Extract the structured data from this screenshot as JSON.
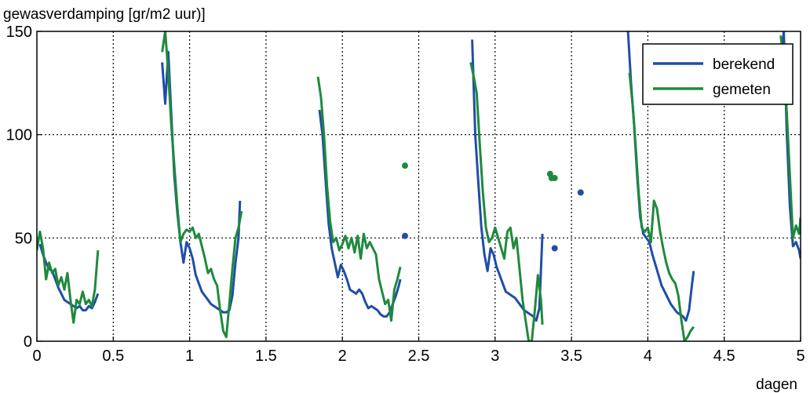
{
  "chart_data": {
    "type": "line",
    "title": "",
    "ylabel": "gewasverdamping [gr/m2 uur)]",
    "xlabel": "dagen",
    "xlim": [
      0,
      5
    ],
    "ylim": [
      0,
      150
    ],
    "xticks": [
      0,
      0.5,
      1,
      1.5,
      2,
      2.5,
      3,
      3.5,
      4,
      4.5,
      5
    ],
    "xtick_labels": [
      "0",
      "0.5",
      "1",
      "1.5",
      "2",
      "2.5",
      "3",
      "3.5",
      "4",
      "4.5",
      "5"
    ],
    "yticks": [
      0,
      50,
      100,
      150
    ],
    "ytick_labels": [
      "0",
      "50",
      "100",
      "150"
    ],
    "grid": true,
    "legend_position": "top-right",
    "legend": [
      "berekend",
      "gemeten"
    ],
    "series": [
      {
        "name": "berekend",
        "color": "#1f4ea8",
        "segments": [
          [
            [
              0.02,
              47
            ],
            [
              0.04,
              42
            ],
            [
              0.06,
              38
            ],
            [
              0.08,
              35
            ],
            [
              0.1,
              34
            ],
            [
              0.12,
              30
            ],
            [
              0.14,
              26
            ],
            [
              0.16,
              23
            ],
            [
              0.18,
              20
            ],
            [
              0.2,
              19
            ],
            [
              0.22,
              18
            ],
            [
              0.24,
              17
            ],
            [
              0.26,
              16
            ],
            [
              0.28,
              17
            ],
            [
              0.3,
              15
            ],
            [
              0.32,
              15
            ],
            [
              0.34,
              17
            ],
            [
              0.36,
              16
            ],
            [
              0.38,
              19
            ],
            [
              0.4,
              23
            ]
          ],
          [
            [
              0.82,
              135
            ],
            [
              0.84,
              115
            ],
            [
              0.86,
              140
            ],
            [
              0.88,
              110
            ],
            [
              0.9,
              80
            ],
            [
              0.92,
              62
            ],
            [
              0.94,
              48
            ],
            [
              0.96,
              38
            ],
            [
              0.98,
              48
            ],
            [
              1.0,
              45
            ],
            [
              1.02,
              40
            ],
            [
              1.04,
              32
            ],
            [
              1.06,
              28
            ],
            [
              1.08,
              24
            ],
            [
              1.1,
              22
            ],
            [
              1.12,
              20
            ],
            [
              1.14,
              18
            ],
            [
              1.16,
              17
            ],
            [
              1.18,
              16
            ],
            [
              1.2,
              15
            ],
            [
              1.22,
              14
            ],
            [
              1.24,
              14
            ],
            [
              1.26,
              15
            ],
            [
              1.28,
              22
            ],
            [
              1.3,
              38
            ],
            [
              1.32,
              50
            ],
            [
              1.33,
              68
            ]
          ],
          [
            [
              1.85,
              112
            ],
            [
              1.87,
              100
            ],
            [
              1.89,
              78
            ],
            [
              1.91,
              57
            ],
            [
              1.93,
              45
            ],
            [
              1.95,
              38
            ],
            [
              1.97,
              31
            ],
            [
              1.99,
              37
            ],
            [
              2.01,
              34
            ],
            [
              2.03,
              30
            ],
            [
              2.05,
              25
            ],
            [
              2.07,
              24
            ],
            [
              2.09,
              23
            ],
            [
              2.11,
              25
            ],
            [
              2.13,
              23
            ],
            [
              2.15,
              19
            ],
            [
              2.17,
              16
            ],
            [
              2.19,
              17
            ],
            [
              2.21,
              16
            ],
            [
              2.23,
              15
            ],
            [
              2.25,
              13
            ],
            [
              2.27,
              12
            ],
            [
              2.29,
              12
            ],
            [
              2.31,
              14
            ],
            [
              2.33,
              18
            ],
            [
              2.35,
              22
            ],
            [
              2.37,
              27
            ],
            [
              2.38,
              30
            ]
          ],
          [
            [
              2.85,
              146
            ],
            [
              2.87,
              100
            ],
            [
              2.89,
              77
            ],
            [
              2.91,
              55
            ],
            [
              2.93,
              42
            ],
            [
              2.95,
              34
            ],
            [
              2.97,
              45
            ],
            [
              2.99,
              42
            ],
            [
              3.01,
              36
            ],
            [
              3.03,
              32
            ],
            [
              3.05,
              28
            ],
            [
              3.07,
              24
            ],
            [
              3.09,
              23
            ],
            [
              3.11,
              22
            ],
            [
              3.13,
              21
            ],
            [
              3.15,
              19
            ],
            [
              3.17,
              17
            ],
            [
              3.19,
              15
            ],
            [
              3.21,
              14
            ],
            [
              3.23,
              13
            ],
            [
              3.25,
              12
            ],
            [
              3.27,
              10
            ],
            [
              3.29,
              16
            ],
            [
              3.31,
              52
            ]
          ],
          [
            [
              3.87,
              150
            ],
            [
              3.89,
              125
            ],
            [
              3.91,
              105
            ],
            [
              3.93,
              80
            ],
            [
              3.95,
              60
            ],
            [
              3.97,
              52
            ],
            [
              3.99,
              50
            ],
            [
              4.01,
              48
            ],
            [
              4.03,
              42
            ],
            [
              4.05,
              37
            ],
            [
              4.07,
              32
            ],
            [
              4.09,
              27
            ],
            [
              4.11,
              24
            ],
            [
              4.13,
              21
            ],
            [
              4.15,
              18
            ],
            [
              4.17,
              16
            ],
            [
              4.19,
              14
            ],
            [
              4.21,
              13
            ],
            [
              4.23,
              12
            ],
            [
              4.25,
              10
            ],
            [
              4.27,
              15
            ],
            [
              4.29,
              28
            ],
            [
              4.3,
              34
            ]
          ],
          [
            [
              4.86,
              122
            ],
            [
              4.88,
              140
            ],
            [
              4.89,
              150
            ],
            [
              4.91,
              100
            ],
            [
              4.93,
              65
            ],
            [
              4.95,
              46
            ],
            [
              4.97,
              48
            ],
            [
              4.99,
              44
            ],
            [
              5.0,
              40
            ]
          ]
        ],
        "points": [
          [
            2.41,
            51
          ],
          [
            3.39,
            45
          ],
          [
            3.56,
            72
          ]
        ]
      },
      {
        "name": "gemeten",
        "color": "#1f8a3c",
        "segments": [
          [
            [
              0.0,
              44
            ],
            [
              0.02,
              53
            ],
            [
              0.04,
              45
            ],
            [
              0.06,
              30
            ],
            [
              0.08,
              38
            ],
            [
              0.1,
              33
            ],
            [
              0.12,
              35
            ],
            [
              0.14,
              27
            ],
            [
              0.16,
              31
            ],
            [
              0.18,
              25
            ],
            [
              0.2,
              33
            ],
            [
              0.22,
              20
            ],
            [
              0.24,
              9
            ],
            [
              0.26,
              20
            ],
            [
              0.28,
              18
            ],
            [
              0.3,
              24
            ],
            [
              0.32,
              18
            ],
            [
              0.34,
              20
            ],
            [
              0.36,
              17
            ],
            [
              0.38,
              25
            ],
            [
              0.4,
              44
            ]
          ],
          [
            [
              0.82,
              140
            ],
            [
              0.84,
              150
            ],
            [
              0.86,
              130
            ],
            [
              0.88,
              105
            ],
            [
              0.9,
              85
            ],
            [
              0.92,
              65
            ],
            [
              0.94,
              48
            ],
            [
              0.96,
              52
            ],
            [
              0.98,
              54
            ],
            [
              1.0,
              53
            ],
            [
              1.02,
              55
            ],
            [
              1.04,
              50
            ],
            [
              1.06,
              52
            ],
            [
              1.08,
              46
            ],
            [
              1.1,
              40
            ],
            [
              1.12,
              33
            ],
            [
              1.14,
              35
            ],
            [
              1.16,
              30
            ],
            [
              1.18,
              27
            ],
            [
              1.2,
              15
            ],
            [
              1.22,
              5
            ],
            [
              1.24,
              2
            ],
            [
              1.26,
              18
            ],
            [
              1.28,
              35
            ],
            [
              1.3,
              50
            ],
            [
              1.32,
              55
            ],
            [
              1.34,
              63
            ]
          ],
          [
            [
              1.84,
              128
            ],
            [
              1.86,
              118
            ],
            [
              1.88,
              100
            ],
            [
              1.9,
              75
            ],
            [
              1.92,
              58
            ],
            [
              1.94,
              48
            ],
            [
              1.96,
              50
            ],
            [
              1.98,
              44
            ],
            [
              2.0,
              47
            ],
            [
              2.02,
              51
            ],
            [
              2.04,
              45
            ],
            [
              2.06,
              50
            ],
            [
              2.08,
              43
            ],
            [
              2.1,
              51
            ],
            [
              2.12,
              40
            ],
            [
              2.14,
              52
            ],
            [
              2.16,
              45
            ],
            [
              2.18,
              48
            ],
            [
              2.2,
              45
            ],
            [
              2.22,
              42
            ],
            [
              2.24,
              30
            ],
            [
              2.26,
              24
            ],
            [
              2.28,
              18
            ],
            [
              2.3,
              20
            ],
            [
              2.32,
              10
            ],
            [
              2.34,
              25
            ],
            [
              2.36,
              30
            ],
            [
              2.38,
              36
            ]
          ],
          [
            [
              2.84,
              135
            ],
            [
              2.86,
              128
            ],
            [
              2.88,
              120
            ],
            [
              2.9,
              95
            ],
            [
              2.92,
              72
            ],
            [
              2.94,
              55
            ],
            [
              2.96,
              48
            ],
            [
              2.98,
              50
            ],
            [
              3.0,
              55
            ],
            [
              3.02,
              50
            ],
            [
              3.04,
              45
            ],
            [
              3.06,
              40
            ],
            [
              3.08,
              53
            ],
            [
              3.1,
              55
            ],
            [
              3.12,
              45
            ],
            [
              3.14,
              50
            ],
            [
              3.16,
              35
            ],
            [
              3.18,
              20
            ],
            [
              3.2,
              10
            ],
            [
              3.22,
              0
            ],
            [
              3.24,
              0
            ],
            [
              3.26,
              15
            ],
            [
              3.28,
              32
            ],
            [
              3.3,
              20
            ],
            [
              3.31,
              8
            ]
          ],
          [
            [
              3.88,
              130
            ],
            [
              3.9,
              115
            ],
            [
              3.92,
              95
            ],
            [
              3.94,
              72
            ],
            [
              3.96,
              55
            ],
            [
              3.98,
              53
            ],
            [
              4.0,
              55
            ],
            [
              4.02,
              48
            ],
            [
              4.04,
              68
            ],
            [
              4.06,
              64
            ],
            [
              4.08,
              53
            ],
            [
              4.1,
              45
            ],
            [
              4.12,
              38
            ],
            [
              4.14,
              33
            ],
            [
              4.16,
              30
            ],
            [
              4.18,
              28
            ],
            [
              4.2,
              22
            ],
            [
              4.22,
              10
            ],
            [
              4.24,
              0
            ],
            [
              4.26,
              2
            ],
            [
              4.28,
              5
            ],
            [
              4.3,
              7
            ]
          ],
          [
            [
              4.87,
              148
            ],
            [
              4.89,
              135
            ],
            [
              4.91,
              110
            ],
            [
              4.93,
              80
            ],
            [
              4.95,
              50
            ],
            [
              4.97,
              56
            ],
            [
              4.99,
              52
            ],
            [
              5.0,
              60
            ]
          ]
        ],
        "points": [
          [
            2.41,
            85
          ],
          [
            3.39,
            79
          ],
          [
            3.36,
            81
          ],
          [
            3.37,
            79
          ]
        ]
      }
    ]
  }
}
